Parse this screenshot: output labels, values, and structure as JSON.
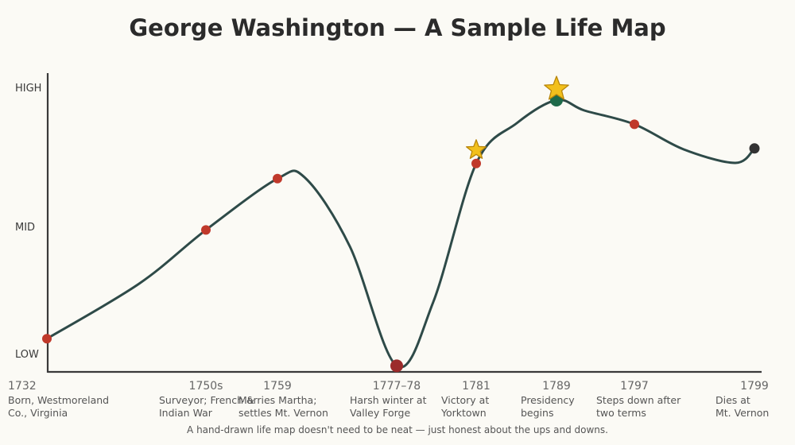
{
  "chart_data": {
    "type": "line",
    "title": "George Washington — A Sample Life Map",
    "y_levels": [
      "LOW",
      "MID",
      "HIGH"
    ],
    "ylim": [
      0,
      1
    ],
    "footer": "A hand-drawn life map doesn't need to be neat — just honest about the ups and downs.",
    "colors": {
      "line": "#2e4a48",
      "point": "#c0392b",
      "low_point": "#9b2b2b",
      "peak_point": "#1e6a4a",
      "end_point": "#333333",
      "star": "#f2c01c",
      "axis": "#3a3a3a"
    },
    "events": [
      {
        "year": "1732",
        "desc": [
          "Born, Westmoreland",
          "Co., Virginia"
        ],
        "value": 0.11
      },
      {
        "year": "1750s",
        "desc": [
          "Surveyor; French &",
          "Indian War"
        ],
        "value": 0.47
      },
      {
        "year": "1759",
        "desc": [
          "Marries Martha;",
          "settles Mt. Vernon"
        ],
        "value": 0.64
      },
      {
        "year": "1777–78",
        "desc": [
          "Harsh winter at",
          "Valley Forge"
        ],
        "value": 0.02,
        "marker": "low"
      },
      {
        "year": "1781",
        "desc": [
          "Victory at",
          "Yorktown"
        ],
        "value": 0.69,
        "star": true
      },
      {
        "year": "1789",
        "desc": [
          "Presidency",
          "begins"
        ],
        "value": 0.9,
        "star": true,
        "marker": "peak"
      },
      {
        "year": "1797",
        "desc": [
          "Steps down after",
          "two terms"
        ],
        "value": 0.82
      },
      {
        "year": "1799",
        "desc": [
          "Dies at",
          "Mt. Vernon"
        ],
        "value": 0.74,
        "marker": "end"
      }
    ]
  }
}
